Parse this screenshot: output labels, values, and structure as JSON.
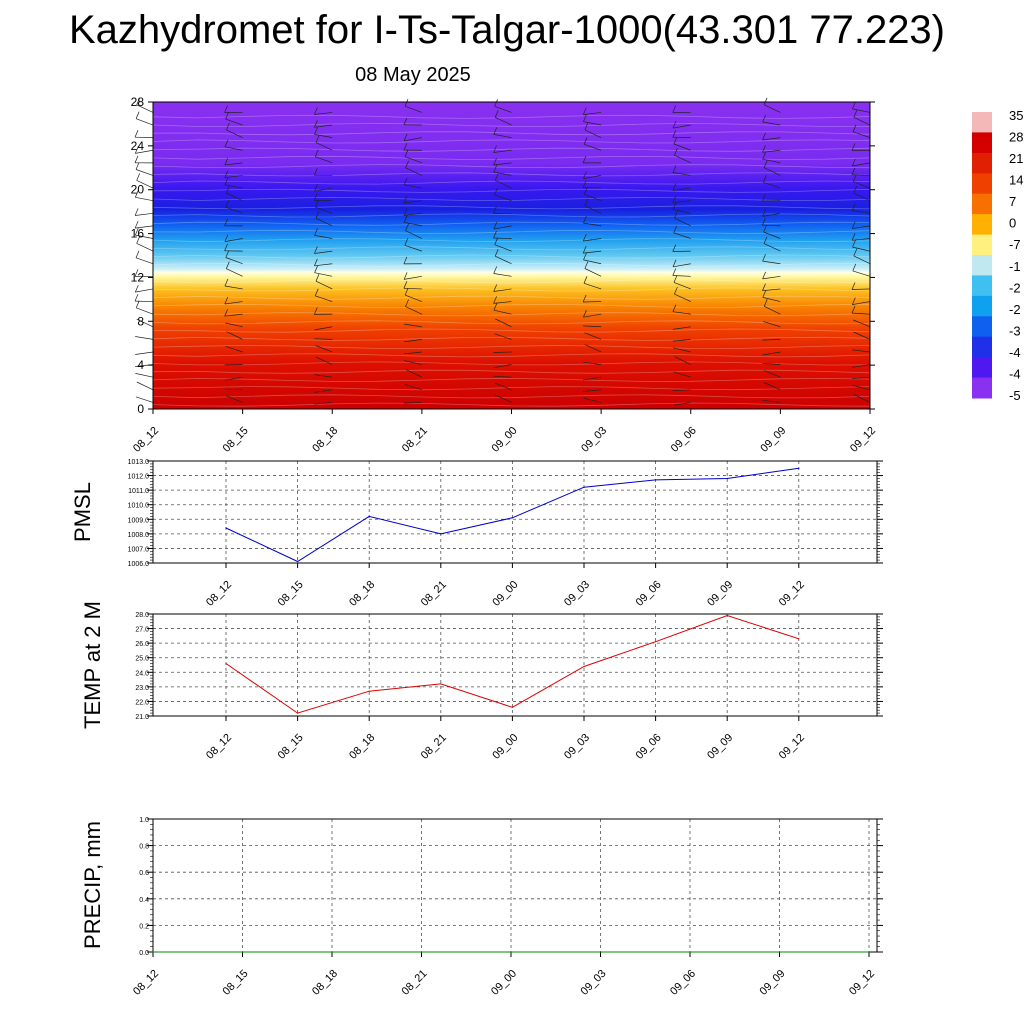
{
  "title": "Kazhydromet for I-Ts-Talgar-1000(43.301 77.223)",
  "subtitle": "08 May 2025",
  "chart_data": [
    {
      "type": "heatmap",
      "name": "vertical-cross-section",
      "x_ticks": [
        "08_12",
        "08_15",
        "08_18",
        "08_21",
        "09_00",
        "09_03",
        "09_06",
        "09_09",
        "09_12"
      ],
      "y_ticks": [
        "0",
        "4",
        "8",
        "12",
        "16",
        "20",
        "24",
        "28"
      ],
      "ylim": [
        0,
        28
      ],
      "colorbar_labels": [
        "35",
        "28",
        "21",
        "14",
        "7",
        "0",
        "-7",
        "-1",
        "-2",
        "-2",
        "-3",
        "-4",
        "-4",
        "-5"
      ],
      "colorbar_colors": [
        "#f5b8b8",
        "#d40000",
        "#e02000",
        "#f04000",
        "#f87000",
        "#ffb000",
        "#fff080",
        "#c0e8f0",
        "#40c0f0",
        "#10a0f0",
        "#1060f0",
        "#2030e8",
        "#5018f0",
        "#8a30f0"
      ]
    },
    {
      "type": "line",
      "name": "pmsl",
      "ylabel": "PMSL",
      "x": [
        "08_12",
        "08_15",
        "08_18",
        "08_21",
        "09_00",
        "09_03",
        "09_06",
        "09_09",
        "09_12"
      ],
      "y_ticks": [
        "1006.0",
        "1007.0",
        "1008.0",
        "1009.0",
        "1010.0",
        "1011.0",
        "1012.0",
        "1013.0"
      ],
      "ylim": [
        1006.0,
        1013.0
      ],
      "series": [
        {
          "values": [
            1008.4,
            1006.1,
            1009.2,
            1008.0,
            1009.1,
            1011.2,
            1011.7,
            1011.8,
            1012.5
          ],
          "color": "#0000cc"
        }
      ],
      "grid": true
    },
    {
      "type": "line",
      "name": "temp2m",
      "ylabel": "TEMP at 2 M",
      "x": [
        "08_12",
        "08_15",
        "08_18",
        "08_21",
        "09_00",
        "09_03",
        "09_06",
        "09_09",
        "09_12"
      ],
      "y_ticks": [
        "21.0",
        "22.0",
        "23.0",
        "24.0",
        "25.0",
        "26.0",
        "27.0",
        "28.0"
      ],
      "ylim": [
        21.0,
        28.0
      ],
      "series": [
        {
          "values": [
            24.6,
            21.2,
            22.7,
            23.2,
            21.6,
            24.4,
            26.1,
            27.9,
            26.3
          ],
          "color": "#dd0000"
        }
      ],
      "grid": true
    },
    {
      "type": "line",
      "name": "precip",
      "ylabel": "PRECIP, mm",
      "x": [
        "08_12",
        "08_15",
        "08_18",
        "08_21",
        "09_00",
        "09_03",
        "09_06",
        "09_09",
        "09_12"
      ],
      "y_ticks": [
        "0.0",
        "0.2",
        "0.4",
        "0.6",
        "0.8",
        "1.0"
      ],
      "ylim": [
        0.0,
        1.0
      ],
      "series": [
        {
          "values": [
            0,
            0,
            0,
            0,
            0,
            0,
            0,
            0,
            0
          ],
          "color": "#008800"
        }
      ],
      "grid": true
    }
  ]
}
